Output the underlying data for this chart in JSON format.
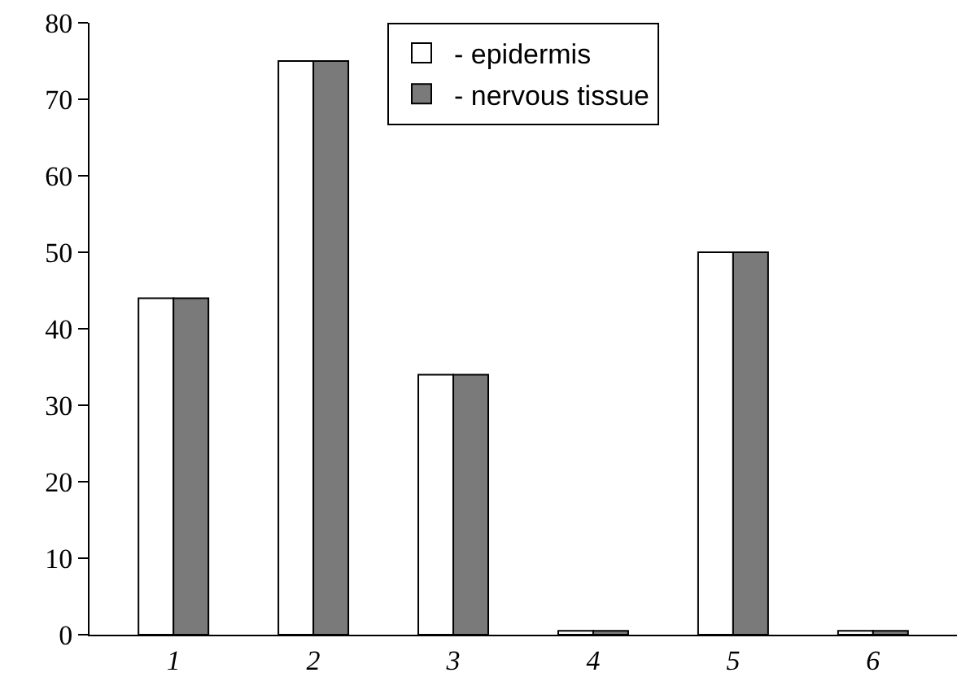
{
  "chart_data": {
    "type": "bar",
    "categories": [
      "1",
      "2",
      "3",
      "4",
      "5",
      "6"
    ],
    "series": [
      {
        "name": "- epidermis",
        "color": "#ffffff",
        "values": [
          44,
          75,
          34,
          0.5,
          50,
          0.5
        ]
      },
      {
        "name": "- nervous tissue",
        "color": "#7a7a7a",
        "values": [
          44,
          75,
          34,
          0.5,
          50,
          0.5
        ]
      }
    ],
    "ylim": [
      0,
      80
    ],
    "yticks": [
      0,
      10,
      20,
      30,
      40,
      50,
      60,
      70,
      80
    ],
    "grid": false,
    "legend": "top"
  }
}
